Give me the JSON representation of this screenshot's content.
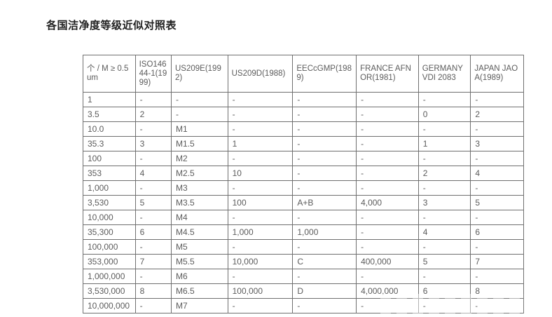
{
  "page": {
    "title": "各国洁净度等级近似对照表"
  },
  "colors": {
    "title_text": "#212121",
    "body_text": "#5c5c5c",
    "table_border": "#6f6f6f",
    "background": "#ffffff"
  },
  "table": {
    "columns": [
      "个 / M ≥ 0.5um",
      "ISO14644-1(1999)",
      "US209E(1992)",
      "US209D(1988)",
      "EECcGMP(1989)",
      "FRANCE AFNOR(1981)",
      "GERMANY VDI 2083",
      "JAPAN JAOA(1989)"
    ],
    "rows": [
      [
        "1",
        "-",
        "-",
        "-",
        "-",
        "-",
        "-",
        "-"
      ],
      [
        "3.5",
        "2",
        "-",
        "-",
        "-",
        "-",
        "0",
        "2"
      ],
      [
        "10.0",
        "-",
        "M1",
        "-",
        "-",
        "-",
        "-",
        "-"
      ],
      [
        "35.3",
        "3",
        "M1.5",
        "1",
        "-",
        "-",
        "1",
        "3"
      ],
      [
        "100",
        "-",
        "M2",
        "-",
        "-",
        "-",
        "-",
        "-"
      ],
      [
        "353",
        "4",
        "M2.5",
        "10",
        "-",
        "-",
        "2",
        "4"
      ],
      [
        "1,000",
        "-",
        "M3",
        "-",
        "-",
        "-",
        "-",
        "-"
      ],
      [
        "3,530",
        "5",
        "M3.5",
        "100",
        "A+B",
        "4,000",
        "3",
        "5"
      ],
      [
        "10,000",
        "-",
        "M4",
        "-",
        "-",
        "-",
        "-",
        "-"
      ],
      [
        "35,300",
        "6",
        "M4.5",
        "1,000",
        "1,000",
        "-",
        "4",
        "6"
      ],
      [
        "100,000",
        "-",
        "M5",
        "-",
        "-",
        "-",
        "-",
        "-"
      ],
      [
        "353,000",
        "7",
        "M5.5",
        "10,000",
        "C",
        "400,000",
        "5",
        "7"
      ],
      [
        "1,000,000",
        "-",
        "M6",
        "-",
        "-",
        "-",
        "-",
        "-"
      ],
      [
        "3,530,000",
        "8",
        "M6.5",
        "100,000",
        "D",
        "4,000,000",
        "6",
        "8"
      ],
      [
        "10,000,000",
        "-",
        "M7",
        "-",
        "-",
        "-",
        "-",
        "-"
      ]
    ]
  }
}
